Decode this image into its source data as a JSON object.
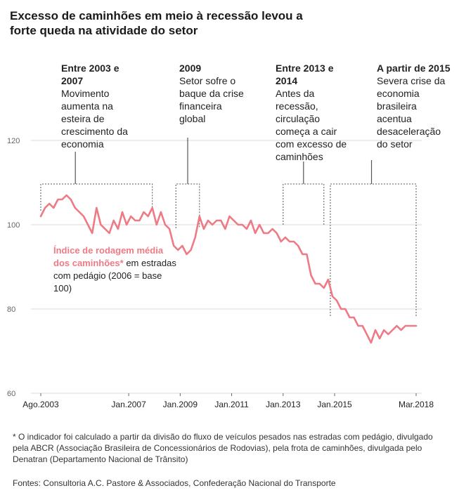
{
  "title": "Excesso de caminhões em meio à recessão levou a forte queda na atividade do setor",
  "annotations": [
    {
      "heading": "Entre 2003 e 2007",
      "text": "Movimento aumenta na esteira de crescimento da economia"
    },
    {
      "heading": "2009",
      "text": "Setor sofre o baque da crise financeira global"
    },
    {
      "heading": "Entre 2013 e 2014",
      "text": "Antes da recessão, circulação começa a cair com excesso de caminhões"
    },
    {
      "heading": "A partir de 2015",
      "text": "Severa crise da economia brasileira acentua desaceleração do setor"
    }
  ],
  "series_label": {
    "highlight": "Índice de rodagem média dos caminhões*",
    "rest": " em estradas com pedágio (2006 = base 100)"
  },
  "footnote": "* O indicador foi calculado a partir da divisão do fluxo de veículos pesados nas estradas com pedágio, divulgado pela ABCR (Associação Brasileira de Concessionários de Rodovias), pela frota de caminhões, divulgada pelo Denatran (Departamento Nacional de Trânsito)",
  "source": "Fontes: Consultoria A.C. Pastore & Associados, Confederação Nacional do Transporte",
  "colors": {
    "line": "#ee7a85",
    "grid": "#d9d9d9",
    "bracket": "#555555"
  },
  "chart_data": {
    "type": "line",
    "title": "Excesso de caminhões em meio à recessão levou a forte queda na atividade do setor",
    "xlabel": "",
    "ylabel": "",
    "ylim": [
      60,
      120
    ],
    "yticks": [
      60,
      80,
      100,
      120
    ],
    "xlim": [
      "2003-08",
      "2018-03"
    ],
    "xticks": [
      {
        "label": "Ago.2003",
        "x": "2003-08"
      },
      {
        "label": "Jan.2007",
        "x": "2007-01"
      },
      {
        "label": "Jan.2009",
        "x": "2009-01"
      },
      {
        "label": "Jan.2011",
        "x": "2011-01"
      },
      {
        "label": "Jan.2013",
        "x": "2013-01"
      },
      {
        "label": "Jan.2015",
        "x": "2015-01"
      },
      {
        "label": "Mar.2018",
        "x": "2018-03"
      }
    ],
    "grid": true,
    "series": [
      {
        "name": "Índice de rodagem média dos caminhões",
        "x": [
          "2003-08",
          "2003-10",
          "2003-12",
          "2004-02",
          "2004-04",
          "2004-06",
          "2004-08",
          "2004-10",
          "2004-12",
          "2005-02",
          "2005-04",
          "2005-06",
          "2005-08",
          "2005-10",
          "2005-12",
          "2006-02",
          "2006-04",
          "2006-06",
          "2006-08",
          "2006-10",
          "2006-12",
          "2007-02",
          "2007-04",
          "2007-06",
          "2007-08",
          "2007-10",
          "2007-12",
          "2008-02",
          "2008-04",
          "2008-06",
          "2008-08",
          "2008-10",
          "2008-12",
          "2009-02",
          "2009-04",
          "2009-06",
          "2009-08",
          "2009-10",
          "2009-12",
          "2010-02",
          "2010-04",
          "2010-06",
          "2010-08",
          "2010-10",
          "2010-12",
          "2011-02",
          "2011-04",
          "2011-06",
          "2011-08",
          "2011-10",
          "2011-12",
          "2012-02",
          "2012-04",
          "2012-06",
          "2012-08",
          "2012-10",
          "2012-12",
          "2013-02",
          "2013-04",
          "2013-06",
          "2013-08",
          "2013-10",
          "2013-12",
          "2014-02",
          "2014-04",
          "2014-06",
          "2014-08",
          "2014-10",
          "2014-12",
          "2015-02",
          "2015-04",
          "2015-06",
          "2015-08",
          "2015-10",
          "2015-12",
          "2016-02",
          "2016-04",
          "2016-06",
          "2016-08",
          "2016-10",
          "2016-12",
          "2017-02",
          "2017-04",
          "2017-06",
          "2017-08",
          "2017-10",
          "2017-12",
          "2018-03"
        ],
        "y": [
          102,
          104,
          105,
          104,
          106,
          106,
          107,
          106,
          104,
          103,
          102,
          100,
          98,
          104,
          100,
          99,
          98,
          101,
          99,
          103,
          100,
          102,
          101,
          101,
          103,
          102,
          104,
          100,
          103,
          100,
          99,
          95,
          94,
          95,
          93,
          94,
          97,
          102,
          99,
          101,
          100,
          101,
          101,
          99,
          102,
          101,
          100,
          100,
          99,
          101,
          98,
          100,
          98,
          98,
          99,
          98,
          96,
          97,
          96,
          96,
          95,
          93,
          93,
          88,
          86,
          86,
          85,
          87,
          83,
          82,
          80,
          80,
          78,
          78,
          76,
          76,
          74,
          72,
          75,
          73,
          75,
          74,
          75,
          76,
          75,
          76,
          76,
          76
        ]
      }
    ]
  }
}
